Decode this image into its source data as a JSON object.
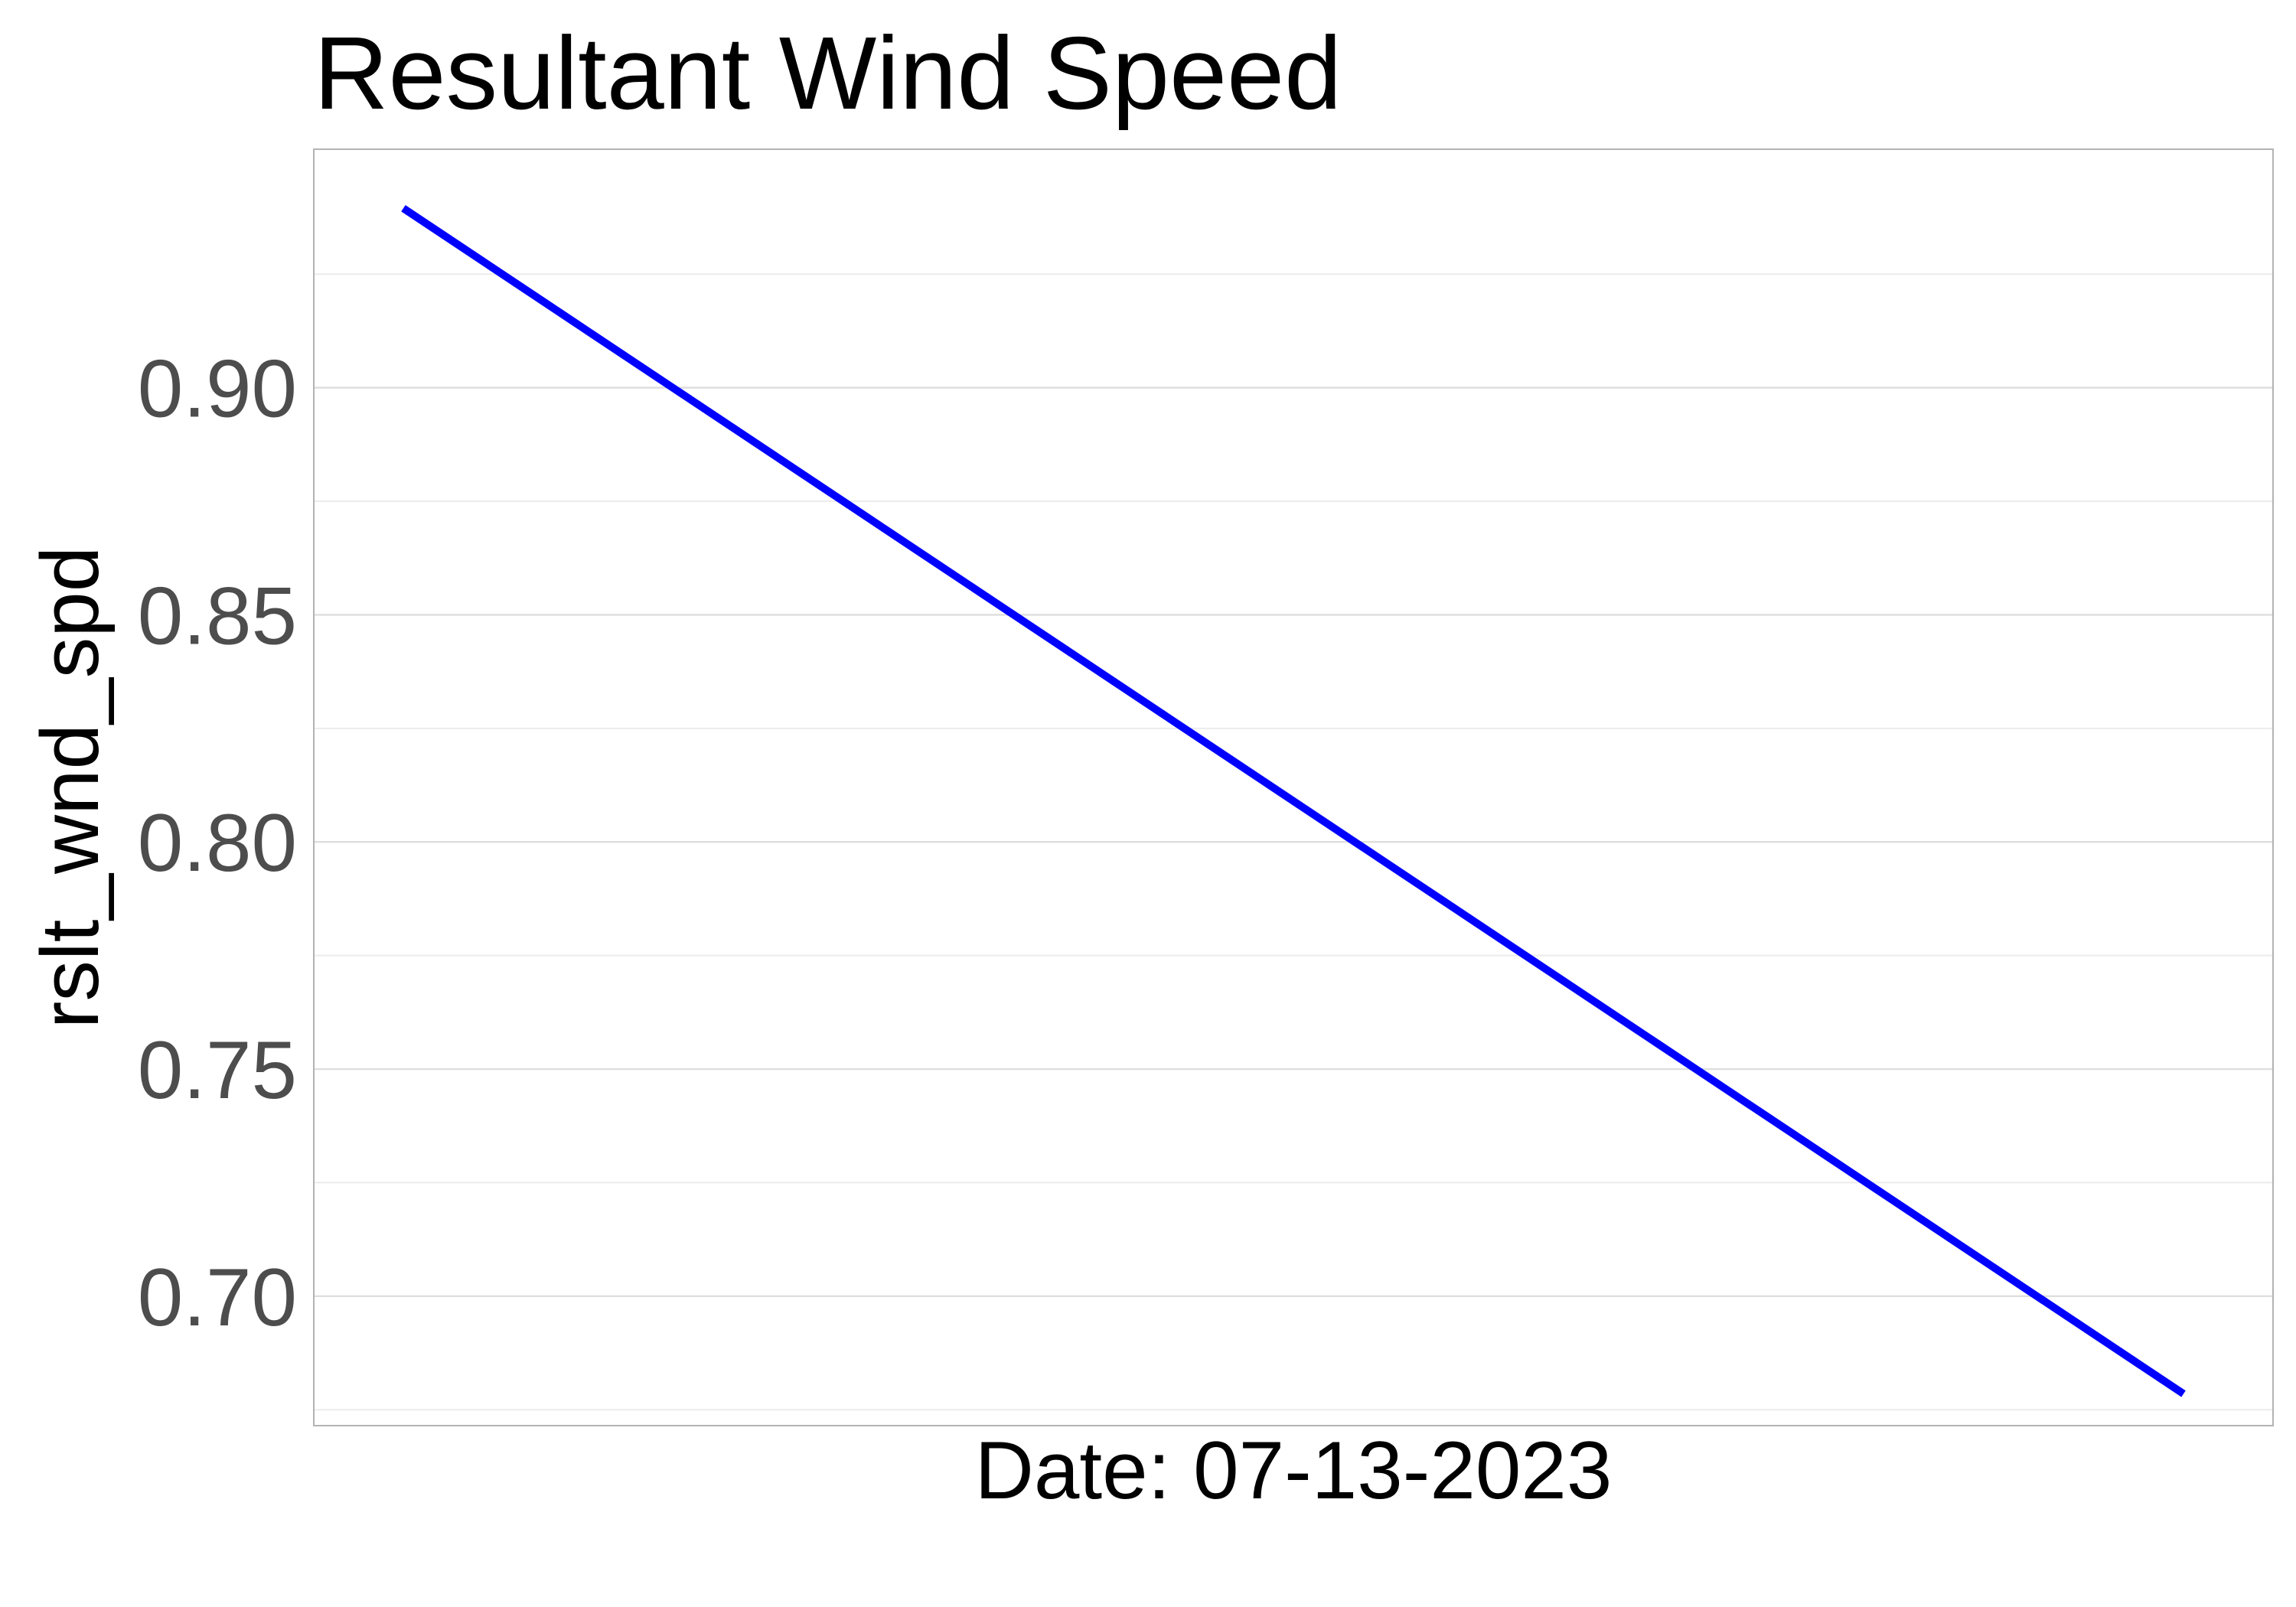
{
  "chart_data": {
    "type": "line",
    "title": "Resultant Wind Speed",
    "xlabel": "Date: 07-13-2023",
    "ylabel": "rslt_wnd_spd",
    "ylim": [
      0.6715,
      0.9525
    ],
    "yticks": [
      {
        "value": 0.7,
        "label": "0.70"
      },
      {
        "value": 0.75,
        "label": "0.75"
      },
      {
        "value": 0.8,
        "label": "0.80"
      },
      {
        "value": 0.85,
        "label": "0.85"
      },
      {
        "value": 0.9,
        "label": "0.90"
      }
    ],
    "yminor": [
      0.675,
      0.725,
      0.775,
      0.825,
      0.875,
      0.925
    ],
    "grid": true,
    "series": [
      {
        "color": "#0000ff",
        "values": [
          0.9395,
          0.6785
        ]
      }
    ]
  }
}
